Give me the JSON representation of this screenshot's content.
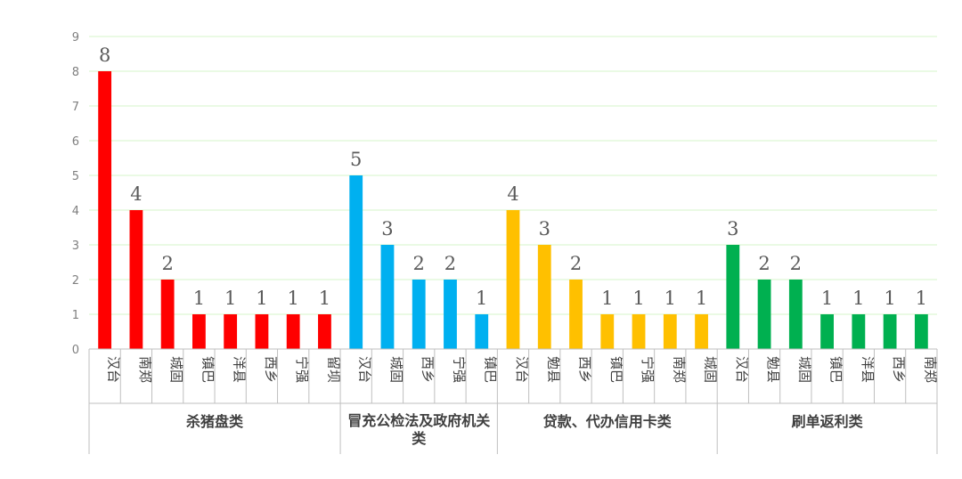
{
  "chart_data": {
    "type": "bar",
    "title": "",
    "xlabel": "",
    "ylabel": "",
    "ylim": [
      0,
      9
    ],
    "yticks": [
      0,
      1,
      2,
      3,
      4,
      5,
      6,
      7,
      8,
      9
    ],
    "grid": true,
    "legend": "none",
    "groups": [
      {
        "name": "杀猪盘类",
        "color": "#ff0000",
        "categories": [
          "汉台",
          "南郑",
          "城固",
          "镇巴",
          "洋县",
          "西乡",
          "宁强",
          "留坝"
        ],
        "values": [
          8,
          4,
          2,
          1,
          1,
          1,
          1,
          1
        ]
      },
      {
        "name": "冒充公检法及政府机关类",
        "color": "#00b0f0",
        "categories": [
          "汉台",
          "城固",
          "西乡",
          "宁强",
          "镇巴"
        ],
        "values": [
          5,
          3,
          2,
          2,
          1
        ]
      },
      {
        "name": "贷款、代办信用卡类",
        "color": "#ffc000",
        "categories": [
          "汉台",
          "勉县",
          "西乡",
          "镇巴",
          "宁强",
          "南郑",
          "城固"
        ],
        "values": [
          4,
          3,
          2,
          1,
          1,
          1,
          1
        ]
      },
      {
        "name": "刷单返利类",
        "color": "#00b050",
        "categories": [
          "汉台",
          "勉县",
          "城固",
          "镇巴",
          "洋县",
          "西乡",
          "南郑"
        ],
        "values": [
          3,
          2,
          2,
          1,
          1,
          1,
          1
        ]
      }
    ]
  }
}
